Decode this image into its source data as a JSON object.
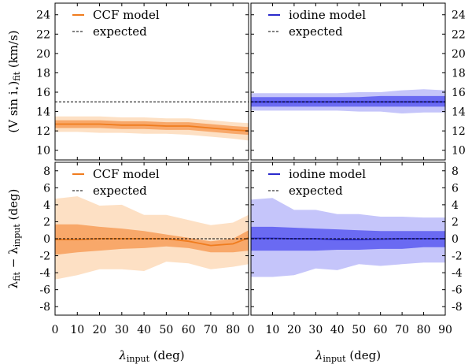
{
  "chart_data": {
    "type": "line",
    "x_label": {
      "main": "λ",
      "sub": "input",
      "rest": " (deg)"
    },
    "top_y_label": {
      "pre": "(V sin i",
      "sub": "⋆",
      "mid": ")",
      "sub2": "fit",
      "post": " (km/s)"
    },
    "bottom_y_label": {
      "a": "λ",
      "a_sub": "fit",
      "mid": " − λ",
      "b_sub": "input",
      "post": " (deg)"
    },
    "x_ticks": [
      "0",
      "10",
      "20",
      "30",
      "40",
      "50",
      "60",
      "70",
      "80",
      "90"
    ],
    "top_y_ticks": [
      "10",
      "12",
      "14",
      "16",
      "18",
      "20",
      "22",
      "24"
    ],
    "bottom_y_ticks": [
      "-8",
      "-6",
      "-4",
      "-2",
      "0",
      "2",
      "4",
      "6",
      "8"
    ],
    "xlim": [
      0,
      87
    ],
    "xlim_right": [
      0,
      90
    ],
    "top_ylim": [
      9,
      25.2
    ],
    "bottom_ylim": [
      -9,
      9
    ],
    "colors": {
      "ccf_line": "#f07c1e",
      "ccf_inner": "#f8a86a",
      "ccf_outer": "#fde0c4",
      "iodine_line": "#2a2acc",
      "iodine_inner": "#6a6af2",
      "iodine_outer": "#c5c5fa",
      "expected": "#000000"
    },
    "panels": [
      {
        "id": "vsini-ccf",
        "legend": [
          "CCF model",
          "expected"
        ],
        "expected": 15,
        "x": [
          0,
          10,
          20,
          30,
          40,
          50,
          60,
          70,
          80,
          87
        ],
        "median": [
          12.7,
          12.7,
          12.7,
          12.6,
          12.6,
          12.5,
          12.5,
          12.3,
          12.1,
          12.0
        ],
        "inner_low": [
          12.3,
          12.3,
          12.3,
          12.2,
          12.2,
          12.1,
          12.1,
          11.9,
          11.7,
          11.6
        ],
        "inner_high": [
          13.1,
          13.1,
          13.1,
          13.0,
          13.0,
          12.9,
          12.9,
          12.7,
          12.5,
          12.4
        ],
        "outer_low": [
          11.9,
          11.9,
          11.8,
          11.8,
          11.7,
          11.7,
          11.6,
          11.4,
          11.2,
          11.0
        ],
        "outer_high": [
          13.5,
          13.5,
          13.5,
          13.4,
          13.4,
          13.3,
          13.3,
          13.1,
          12.9,
          12.8
        ]
      },
      {
        "id": "vsini-iodine",
        "legend": [
          "iodine model",
          "expected"
        ],
        "expected": 15,
        "x": [
          0,
          10,
          20,
          30,
          40,
          50,
          60,
          70,
          80,
          90
        ],
        "median": [
          15.0,
          15.0,
          15.0,
          15.0,
          15.0,
          15.0,
          15.0,
          15.0,
          15.0,
          15.0
        ],
        "inner_low": [
          14.5,
          14.5,
          14.5,
          14.5,
          14.5,
          14.5,
          14.5,
          14.5,
          14.5,
          14.5
        ],
        "inner_high": [
          15.5,
          15.5,
          15.5,
          15.5,
          15.5,
          15.5,
          15.6,
          15.6,
          15.6,
          15.6
        ],
        "outer_low": [
          14.1,
          14.1,
          14.1,
          14.1,
          14.1,
          14.0,
          14.0,
          13.8,
          13.9,
          13.9
        ],
        "outer_high": [
          15.9,
          15.9,
          15.9,
          15.9,
          15.9,
          16.0,
          16.0,
          16.2,
          16.3,
          16.2
        ]
      },
      {
        "id": "lambda-ccf",
        "legend": [
          "CCF model",
          "expected"
        ],
        "expected": 0,
        "x": [
          0,
          10,
          20,
          30,
          40,
          50,
          60,
          70,
          80,
          87
        ],
        "median": [
          -0.1,
          -0.1,
          0.0,
          0.0,
          0.0,
          0.0,
          -0.3,
          -0.8,
          -0.6,
          0.1
        ],
        "inner_low": [
          -1.9,
          -1.6,
          -1.4,
          -1.2,
          -1.1,
          -0.9,
          -1.1,
          -1.6,
          -1.6,
          -1.4
        ],
        "inner_high": [
          1.7,
          1.7,
          1.4,
          1.2,
          0.9,
          0.5,
          0.1,
          -0.3,
          0.0,
          1.0
        ],
        "outer_low": [
          -4.8,
          -4.3,
          -3.6,
          -3.6,
          -3.8,
          -2.7,
          -2.9,
          -3.6,
          -3.3,
          -3.0
        ],
        "outer_high": [
          4.7,
          5.0,
          3.9,
          4.0,
          2.8,
          2.8,
          2.2,
          1.6,
          1.9,
          2.8
        ]
      },
      {
        "id": "lambda-iodine",
        "legend": [
          "iodine model",
          "expected"
        ],
        "expected": 0,
        "x": [
          0,
          10,
          20,
          30,
          40,
          50,
          60,
          70,
          80,
          90
        ],
        "median": [
          0.05,
          0.05,
          0.0,
          0.0,
          -0.1,
          -0.1,
          -0.05,
          0.0,
          0.0,
          0.0
        ],
        "inner_low": [
          -1.4,
          -1.4,
          -1.4,
          -1.4,
          -1.3,
          -1.3,
          -1.2,
          -1.2,
          -1.0,
          -1.0
        ],
        "inner_high": [
          1.4,
          1.4,
          1.3,
          1.2,
          1.1,
          1.0,
          0.9,
          0.9,
          0.9,
          0.9
        ],
        "outer_low": [
          -4.5,
          -4.5,
          -4.3,
          -3.5,
          -3.7,
          -3.0,
          -3.2,
          -3.0,
          -2.8,
          -2.8
        ],
        "outer_high": [
          4.6,
          4.8,
          3.4,
          3.4,
          2.9,
          2.9,
          2.6,
          2.6,
          2.5,
          2.5
        ]
      }
    ]
  }
}
